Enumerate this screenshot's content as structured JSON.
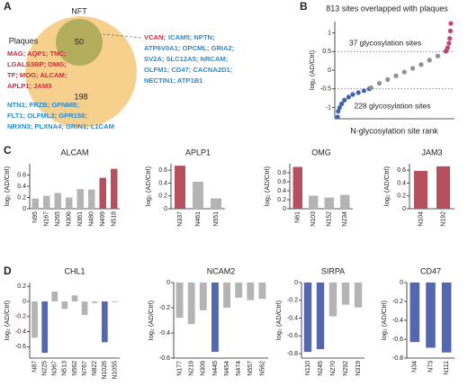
{
  "chart_data": [
    {
      "type": "venn",
      "panel": "A",
      "sets": [
        {
          "name": "Plaques",
          "color": "#f8d08e"
        },
        {
          "name": "NFT",
          "color": "#b3ae5e"
        }
      ],
      "overlap": 50,
      "plaques_only": 198,
      "nft_genes": [
        [
          {
            "text": "VCAN;",
            "color": "#d7263d"
          },
          {
            "text": "ICAM5; NPTN;",
            "color": "#2b8ccf"
          }
        ],
        [
          {
            "text": "ATP6V0A1; OPCML; GRIA2;",
            "color": "#2b8ccf"
          }
        ],
        [
          {
            "text": "SV2A; SLC12A5; NRCAM;",
            "color": "#2b8ccf"
          }
        ],
        [
          {
            "text": "OLFM1; CD47; CACNA2D1;",
            "color": "#2b8ccf"
          }
        ],
        [
          {
            "text": "NECTIN1; ATP1B1",
            "color": "#2b8ccf"
          }
        ]
      ],
      "plaque_genes": [
        [
          {
            "text": "MAG; AQP1; TNC;",
            "color": "#d7263d"
          }
        ],
        [
          {
            "text": "LGALS3BP; OMG;",
            "color": "#d7263d"
          }
        ],
        [
          {
            "text": "TF; MOG; ALCAM;",
            "color": "#d7263d"
          }
        ],
        [
          {
            "text": "APLP1; JAM3",
            "color": "#d7263d"
          }
        ],
        [
          {
            "text": "NTN1; FRZB; GPNMB;",
            "color": "#2b8ccf"
          }
        ],
        [
          {
            "text": "FLT1; OLFML3; GPR158;",
            "color": "#2b8ccf"
          }
        ],
        [
          {
            "text": "NRXN3; PLXNA4; GRIN1; L1CAM",
            "color": "#2b8ccf"
          }
        ]
      ]
    },
    {
      "type": "scatter",
      "panel": "B",
      "title": "813 sites overlapped with plaques",
      "xlabel": "N-glycosylation site rank",
      "ylabel": "log₂ (AD/Ctrl)",
      "xlim": [
        0,
        820
      ],
      "ylim": [
        -1.3,
        1.3
      ],
      "yticks": [
        -1,
        -0.5,
        0,
        0.5,
        1
      ],
      "hlines": [
        0.5,
        -0.5
      ],
      "annotations": [
        "37 glycosylation sites",
        "228 glycosylation sites"
      ],
      "series": [
        {
          "color": "#3d62ae",
          "x": [
            1,
            5,
            15,
            30,
            50,
            80,
            110,
            150,
            190,
            228
          ],
          "values": [
            -1.25,
            -1.1,
            -1.0,
            -0.9,
            -0.8,
            -0.72,
            -0.65,
            -0.6,
            -0.55,
            -0.5
          ]
        },
        {
          "color": "#8f8f8f",
          "x": [
            240,
            300,
            360,
            420,
            480,
            540,
            600,
            660,
            720,
            776
          ],
          "values": [
            -0.47,
            -0.35,
            -0.25,
            -0.15,
            -0.05,
            0.05,
            0.15,
            0.27,
            0.38,
            0.5
          ]
        },
        {
          "color": "#c2456b",
          "x": [
            780,
            790,
            800,
            805,
            810,
            813
          ],
          "values": [
            0.52,
            0.6,
            0.72,
            0.85,
            1.05,
            1.25
          ]
        }
      ]
    },
    {
      "type": "bar",
      "panel": "C",
      "title": "ALCAM",
      "ylabel": "log₂ (AD/Ctrl)",
      "ylim": [
        0,
        0.8
      ],
      "yticks": [
        0,
        0.2,
        0.4,
        0.6
      ],
      "categories": [
        "N95",
        "N167",
        "N265",
        "N306",
        "N361",
        "N480",
        "N499",
        "N518"
      ],
      "values": [
        0.18,
        0.23,
        0.28,
        0.2,
        0.35,
        0.34,
        0.55,
        0.71
      ],
      "colors": [
        "#b4b4b4",
        "#b4b4b4",
        "#b4b4b4",
        "#b4b4b4",
        "#b4b4b4",
        "#b4b4b4",
        "#b5505f",
        "#b5505f"
      ]
    },
    {
      "type": "bar",
      "title": "APLP1",
      "ylabel": "log₂ (AD/Ctrl)",
      "ylim": [
        0,
        0.7
      ],
      "yticks": [
        0,
        0.2,
        0.4,
        0.6
      ],
      "categories": [
        "N337",
        "N461",
        "N551"
      ],
      "values": [
        0.67,
        0.42,
        0.16
      ],
      "colors": [
        "#b5505f",
        "#b4b4b4",
        "#b4b4b4"
      ]
    },
    {
      "type": "bar",
      "title": "OMG",
      "ylabel": "log₂ (AD/Ctrl)",
      "ylim": [
        0,
        1
      ],
      "yticks": [
        0,
        0.2,
        0.4,
        0.6,
        0.8
      ],
      "categories": [
        "N61",
        "N103",
        "N152",
        "N234"
      ],
      "values": [
        0.93,
        0.29,
        0.25,
        0.31
      ],
      "colors": [
        "#b5505f",
        "#b4b4b4",
        "#b4b4b4",
        "#b4b4b4"
      ]
    },
    {
      "type": "bar",
      "title": "JAM3",
      "ylabel": "log₂ (AD/Ctrl)",
      "ylim": [
        0,
        0.7
      ],
      "yticks": [
        0,
        0.2,
        0.4,
        0.6
      ],
      "categories": [
        "N104",
        "N192"
      ],
      "values": [
        0.59,
        0.66
      ],
      "colors": [
        "#b5505f",
        "#b5505f"
      ]
    },
    {
      "type": "bar",
      "panel": "D",
      "title": "CHL1",
      "ylabel": "log₂ (AD/Ctrl)",
      "ylim": [
        -0.75,
        0.25
      ],
      "yticks": [
        -0.6,
        -0.4,
        -0.2,
        0,
        0.2
      ],
      "categories": [
        "N87",
        "N225",
        "N367",
        "N513",
        "N562",
        "N767",
        "N822",
        "N1026",
        "N1055"
      ],
      "values": [
        -0.48,
        -0.68,
        0.13,
        -0.1,
        0.08,
        -0.18,
        -0.02,
        -0.54,
        -0.01
      ],
      "colors": [
        "#b4b4b4",
        "#5468b0",
        "#b4b4b4",
        "#b4b4b4",
        "#b4b4b4",
        "#b4b4b4",
        "#b4b4b4",
        "#5468b0",
        "#b4b4b4"
      ]
    },
    {
      "type": "bar",
      "title": "NCAM2",
      "ylabel": "log₂ (AD/Ctrl)",
      "ylim": [
        -0.6,
        0
      ],
      "yticks": [
        -0.6,
        -0.4,
        -0.2,
        0
      ],
      "categories": [
        "N177",
        "N219",
        "N309",
        "N445",
        "N454",
        "N474",
        "N557",
        "N562"
      ],
      "values": [
        -0.28,
        -0.33,
        -0.22,
        -0.55,
        -0.2,
        -0.12,
        -0.14,
        -0.13
      ],
      "colors": [
        "#b4b4b4",
        "#b4b4b4",
        "#b4b4b4",
        "#5468b0",
        "#b4b4b4",
        "#b4b4b4",
        "#b4b4b4",
        "#b4b4b4"
      ]
    },
    {
      "type": "bar",
      "title": "SIRPA",
      "ylabel": "log₂ (AD/Ctrl)",
      "ylim": [
        -0.85,
        0
      ],
      "yticks": [
        -0.8,
        -0.6,
        -0.4,
        -0.2,
        0
      ],
      "categories": [
        "N110",
        "N245",
        "N270",
        "N292",
        "N319"
      ],
      "values": [
        -0.78,
        -0.75,
        -0.38,
        -0.25,
        -0.28
      ],
      "colors": [
        "#5468b0",
        "#5468b0",
        "#b4b4b4",
        "#b4b4b4",
        "#b4b4b4"
      ]
    },
    {
      "type": "bar",
      "title": "CD47",
      "ylabel": "log₂ (AD/Ctrl)",
      "ylim": [
        -0.8,
        0
      ],
      "yticks": [
        -0.8,
        -0.6,
        -0.4,
        -0.2,
        0
      ],
      "categories": [
        "N34",
        "N73",
        "N111"
      ],
      "values": [
        -0.63,
        -0.69,
        -0.74
      ],
      "colors": [
        "#5468b0",
        "#5468b0",
        "#5468b0"
      ]
    }
  ]
}
